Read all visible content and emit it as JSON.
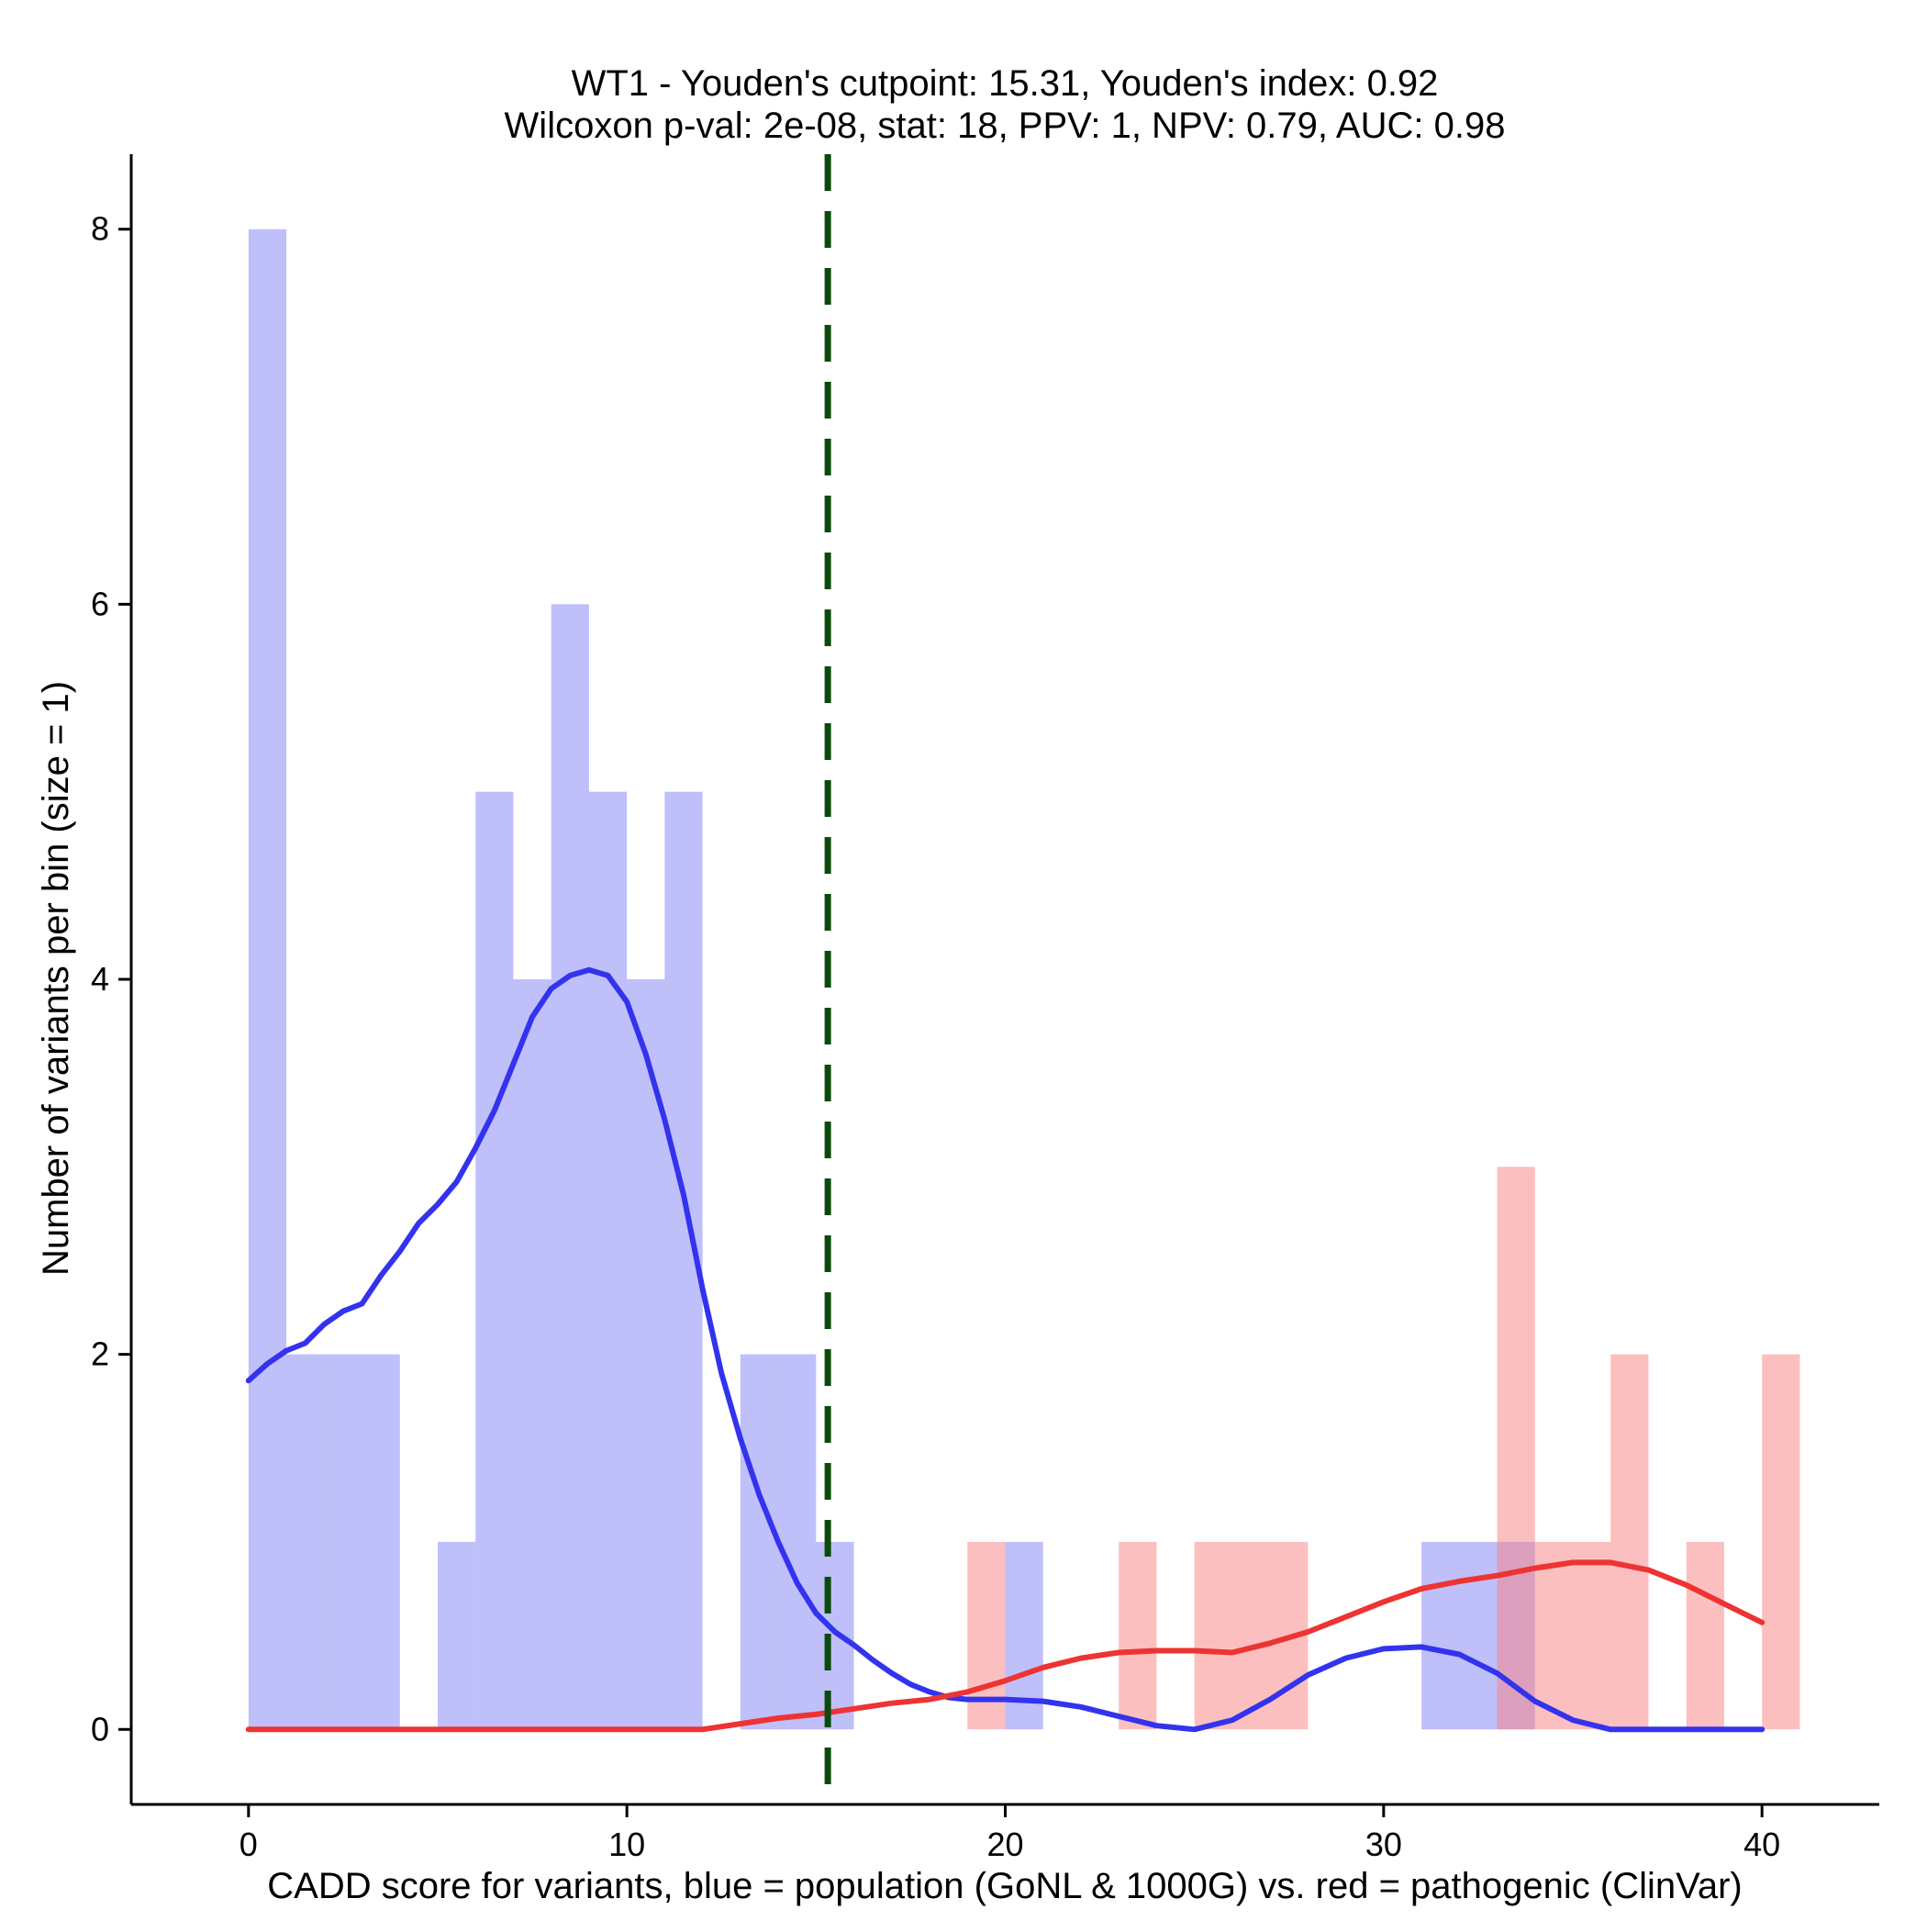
{
  "chart_data": {
    "type": "bar",
    "title": "WT1 - Youden's cutpoint: 15.31, Youden's index: 0.92",
    "subtitle": "Wilcoxon p-val: 2e-08, stat: 18, PPV: 1, NPV: 0.79, AUC: 0.98",
    "xlabel": "CADD score for variants, blue = population (GoNL & 1000G) vs. red = pathogenic (ClinVar)",
    "ylabel": "Number of variants per bin (size = 1)",
    "xlim": [
      -3.1,
      43.1
    ],
    "ylim": [
      -0.4,
      8.4
    ],
    "x_ticks": [
      0,
      10,
      20,
      30,
      40
    ],
    "y_ticks": [
      0,
      2,
      4,
      6,
      8
    ],
    "x_tick_labels": [
      "0",
      "10",
      "20",
      "30",
      "40"
    ],
    "y_tick_labels": [
      "0",
      "2",
      "4",
      "6",
      "8"
    ],
    "bin_width": 1,
    "cutpoint": 15.31,
    "series": [
      {
        "name": "population (GoNL & 1000G)",
        "color": "#8080f5",
        "bins": [
          {
            "start": 0,
            "count": 8
          },
          {
            "start": 1,
            "count": 2
          },
          {
            "start": 2,
            "count": 2
          },
          {
            "start": 3,
            "count": 2
          },
          {
            "start": 5,
            "count": 1
          },
          {
            "start": 6,
            "count": 5
          },
          {
            "start": 7,
            "count": 4
          },
          {
            "start": 8,
            "count": 6
          },
          {
            "start": 9,
            "count": 5
          },
          {
            "start": 10,
            "count": 4
          },
          {
            "start": 11,
            "count": 5
          },
          {
            "start": 13,
            "count": 2
          },
          {
            "start": 14,
            "count": 2
          },
          {
            "start": 15,
            "count": 1
          },
          {
            "start": 20,
            "count": 1
          },
          {
            "start": 31,
            "count": 1
          },
          {
            "start": 32,
            "count": 1
          },
          {
            "start": 33,
            "count": 1
          }
        ]
      },
      {
        "name": "pathogenic (ClinVar)",
        "color": "#fa8080",
        "bins": [
          {
            "start": 19,
            "count": 1
          },
          {
            "start": 23,
            "count": 1
          },
          {
            "start": 25,
            "count": 1
          },
          {
            "start": 26,
            "count": 1
          },
          {
            "start": 27,
            "count": 1
          },
          {
            "start": 33,
            "count": 3
          },
          {
            "start": 34,
            "count": 1
          },
          {
            "start": 35,
            "count": 1
          },
          {
            "start": 36,
            "count": 2
          },
          {
            "start": 38,
            "count": 1
          },
          {
            "start": 40,
            "count": 2
          }
        ]
      }
    ],
    "density_lines": [
      {
        "name": "population density",
        "color": "#3333ee",
        "x": [
          0,
          0.5,
          1,
          1.5,
          2,
          2.5,
          3,
          3.5,
          4,
          4.5,
          5,
          5.5,
          6,
          6.5,
          7,
          7.5,
          8,
          8.5,
          9,
          9.5,
          10,
          10.5,
          11,
          11.5,
          12,
          12.5,
          13,
          13.5,
          14,
          14.5,
          15,
          15.5,
          16,
          16.5,
          17,
          17.5,
          18,
          18.5,
          19,
          19.5,
          20,
          21,
          22,
          23,
          24,
          25,
          26,
          27,
          28,
          29,
          30,
          31,
          32,
          33,
          34,
          35,
          36,
          37,
          38,
          39,
          40
        ],
        "y": [
          1.86,
          1.95,
          2.02,
          2.06,
          2.16,
          2.23,
          2.27,
          2.42,
          2.55,
          2.7,
          2.8,
          2.92,
          3.1,
          3.3,
          3.55,
          3.8,
          3.95,
          4.02,
          4.05,
          4.02,
          3.88,
          3.6,
          3.25,
          2.85,
          2.35,
          1.9,
          1.55,
          1.25,
          1.0,
          0.78,
          0.62,
          0.52,
          0.45,
          0.37,
          0.3,
          0.24,
          0.2,
          0.17,
          0.16,
          0.16,
          0.16,
          0.15,
          0.12,
          0.07,
          0.02,
          0.0,
          0.05,
          0.16,
          0.29,
          0.38,
          0.43,
          0.44,
          0.4,
          0.3,
          0.15,
          0.05,
          0.0,
          0.0,
          0.0,
          0.0,
          0.0
        ]
      },
      {
        "name": "pathogenic density",
        "color": "#ee3333",
        "x": [
          0,
          2,
          4,
          6,
          8,
          10,
          12,
          13,
          14,
          15,
          16,
          17,
          18,
          19,
          20,
          21,
          22,
          23,
          24,
          25,
          26,
          27,
          28,
          29,
          30,
          31,
          32,
          33,
          34,
          35,
          36,
          37,
          38,
          39,
          40
        ],
        "y": [
          0,
          0,
          0,
          0,
          0,
          0,
          0,
          0.03,
          0.06,
          0.08,
          0.11,
          0.14,
          0.16,
          0.2,
          0.26,
          0.33,
          0.38,
          0.41,
          0.42,
          0.42,
          0.41,
          0.46,
          0.52,
          0.6,
          0.68,
          0.75,
          0.79,
          0.82,
          0.86,
          0.89,
          0.89,
          0.85,
          0.77,
          0.67,
          0.57
        ]
      }
    ]
  }
}
